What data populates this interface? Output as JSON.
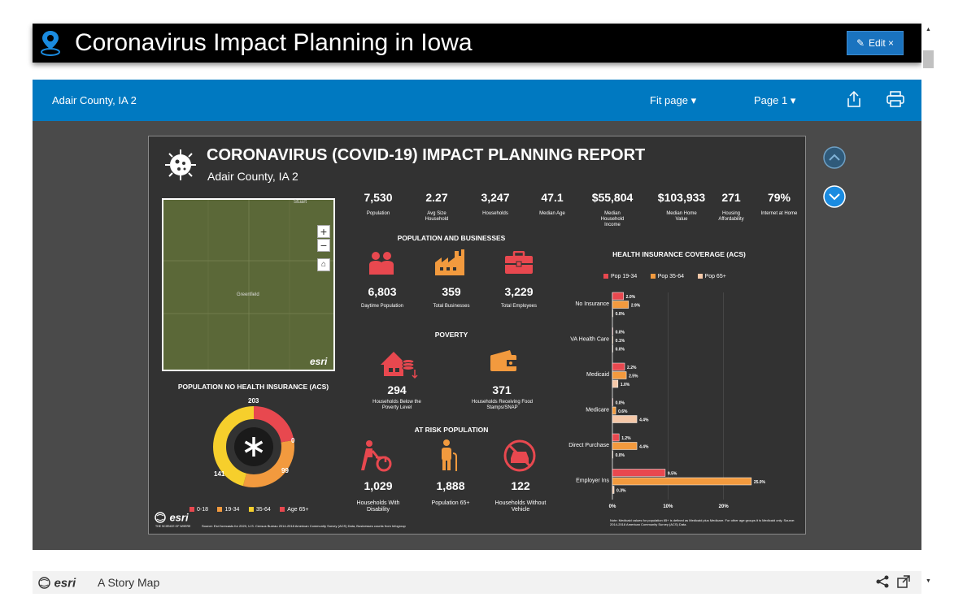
{
  "app": {
    "title": "Coronavirus Impact Planning in Iowa",
    "edit_label": "Edit ×"
  },
  "toolbar": {
    "page_name": "Adair County, IA 2",
    "fit_label": "Fit page ▾",
    "page_label": "Page 1 ▾"
  },
  "report": {
    "title": "CORONAVIRUS (COVID-19) IMPACT PLANNING REPORT",
    "subtitle": "Adair County, IA 2",
    "stats": [
      {
        "value": "7,530",
        "label": "Population"
      },
      {
        "value": "2.27",
        "label": "Avg Size Household"
      },
      {
        "value": "3,247",
        "label": "Households"
      },
      {
        "value": "47.1",
        "label": "Median Age"
      },
      {
        "value": "$55,804",
        "label": "Median Household Income"
      },
      {
        "value": "$103,933",
        "label": "Median Home Value"
      },
      {
        "value": "271",
        "label": "Housing Affordability"
      },
      {
        "value": "79%",
        "label": "Internet at Home"
      }
    ],
    "map": {
      "label_town": "Greenfield",
      "label_road": "Stuart",
      "logo": "esri"
    },
    "pop_business": {
      "heading": "POPULATION AND BUSINESSES",
      "items": [
        {
          "value": "6,803",
          "label": "Daytime Population",
          "icon": "people-icon"
        },
        {
          "value": "359",
          "label": "Total Businesses",
          "icon": "factory-icon"
        },
        {
          "value": "3,229",
          "label": "Total Employees",
          "icon": "briefcase-icon"
        }
      ]
    },
    "poverty": {
      "heading": "POVERTY",
      "items": [
        {
          "value": "294",
          "label": "Households Below the Poverty Level",
          "icon": "house-coins-icon"
        },
        {
          "value": "371",
          "label": "Households Receiving Food Stamps/SNAP",
          "icon": "wallet-icon"
        }
      ]
    },
    "at_risk": {
      "heading": "AT RISK POPULATION",
      "items": [
        {
          "value": "1,029",
          "label": "Households With Disability",
          "icon": "wheelchair-icon"
        },
        {
          "value": "1,888",
          "label": "Population 65+",
          "icon": "elderly-icon"
        },
        {
          "value": "122",
          "label": "Households Without Vehicle",
          "icon": "no-car-icon"
        }
      ]
    },
    "donut": {
      "heading": "POPULATION NO HEALTH INSURANCE (ACS)",
      "segments": [
        {
          "name": "0-18",
          "value": 0,
          "color": "#e8484f"
        },
        {
          "name": "19-34",
          "value": 99,
          "color": "#e8484f"
        },
        {
          "name": "35-64",
          "value": 141,
          "color": "#f29a3e"
        },
        {
          "name": "Age 65+",
          "value": 203,
          "color": "#f6cf2c"
        }
      ],
      "labels": {
        "top": "203",
        "right": "0",
        "right_bottom": "99",
        "left_bottom": "141"
      },
      "legend": [
        "0-18",
        "19-34",
        "35-64",
        "Age 65+"
      ]
    },
    "health": {
      "heading": "HEALTH INSURANCE COVERAGE (ACS)",
      "legend": [
        "Pop 19-34",
        "Pop 35-64",
        "Pop 65+"
      ],
      "note": "Note: Medicaid values for population 65+ is defined as Medicaid plus Medicare. For other age groups it is Medicaid only. Source: 2014-2018 American Community Survey (ACS) Data."
    },
    "source": "Source: Esri forecasts for 2020, U.S. Census Bureau 2014-2018 American Community Survey (ACS) Data, Businesses counts from Infogroup",
    "esri_tagline": "THE SCIENCE OF WHERE"
  },
  "chart_data": {
    "type": "bar",
    "orientation": "horizontal",
    "title": "HEALTH INSURANCE COVERAGE (ACS)",
    "categories": [
      "No Insurance",
      "VA Health Care",
      "Medicaid",
      "Medicare",
      "Direct Purchase",
      "Employer Ins"
    ],
    "series": [
      {
        "name": "Pop 19-34",
        "color": "#e8484f",
        "values": [
          2.0,
          0.0,
          2.2,
          0.0,
          1.2,
          9.5
        ]
      },
      {
        "name": "Pop 35-64",
        "color": "#f29a3e",
        "values": [
          2.9,
          0.1,
          2.5,
          0.6,
          4.4,
          25.0
        ]
      },
      {
        "name": "Pop 65+",
        "color": "#f5c8a8",
        "values": [
          0.0,
          0.0,
          1.0,
          4.4,
          0.0,
          0.3
        ]
      }
    ],
    "value_labels": [
      [
        "2.0%",
        "0.0%",
        "2.2%",
        "0.0%",
        "1.2%",
        "9.5%"
      ],
      [
        "2.9%",
        "0.1%",
        "2.5%",
        "0.6%",
        "4.4%",
        "25.0%"
      ],
      [
        "0.0%",
        "0.0%",
        "1.0%",
        "4.4%",
        "0.0%",
        "0.3%"
      ]
    ],
    "xlim": [
      0,
      30
    ],
    "xticks": [
      "0%",
      "10%",
      "20%"
    ]
  },
  "footer": {
    "brand": "esri",
    "label": "A Story Map"
  },
  "colors": {
    "blue": "#0079c1",
    "red": "#e8484f",
    "orange": "#f29a3e",
    "yellow": "#f6cf2c"
  }
}
